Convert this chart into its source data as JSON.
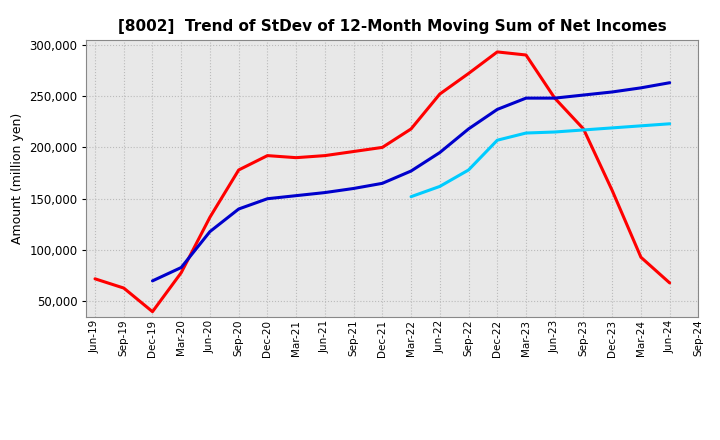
{
  "title": "[8002]  Trend of StDev of 12-Month Moving Sum of Net Incomes",
  "ylabel": "Amount (million yen)",
  "background_color": "#ffffff",
  "plot_bg_color": "#e8e8e8",
  "grid_color": "#bbbbbb",
  "ylim": [
    35000,
    305000
  ],
  "yticks": [
    50000,
    100000,
    150000,
    200000,
    250000,
    300000
  ],
  "x_labels": [
    "Jun-19",
    "Sep-19",
    "Dec-19",
    "Mar-20",
    "Jun-20",
    "Sep-20",
    "Dec-20",
    "Mar-21",
    "Jun-21",
    "Sep-21",
    "Dec-21",
    "Mar-22",
    "Jun-22",
    "Sep-22",
    "Dec-22",
    "Mar-23",
    "Jun-23",
    "Sep-23",
    "Dec-23",
    "Mar-24",
    "Jun-24",
    "Sep-24"
  ],
  "series": {
    "3 Years": {
      "color": "#ff0000",
      "data_x": [
        0,
        1,
        2,
        3,
        4,
        5,
        6,
        7,
        8,
        9,
        10,
        11,
        12,
        13,
        14,
        15,
        16,
        17,
        18,
        19,
        20
      ],
      "data_y": [
        72000,
        63000,
        40000,
        78000,
        132000,
        178000,
        192000,
        190000,
        192000,
        196000,
        200000,
        218000,
        252000,
        272000,
        293000,
        290000,
        248000,
        218000,
        158000,
        93000,
        68000
      ]
    },
    "5 Years": {
      "color": "#0000cc",
      "data_x": [
        2,
        3,
        4,
        5,
        6,
        7,
        8,
        9,
        10,
        11,
        12,
        13,
        14,
        15,
        16,
        17,
        18,
        19,
        20
      ],
      "data_y": [
        70000,
        83000,
        118000,
        140000,
        150000,
        153000,
        156000,
        160000,
        165000,
        177000,
        195000,
        218000,
        237000,
        248000,
        248000,
        251000,
        254000,
        258000,
        263000
      ]
    },
    "7 Years": {
      "color": "#00ccff",
      "data_x": [
        11,
        12,
        13,
        14,
        15,
        16,
        17,
        18,
        19,
        20
      ],
      "data_y": [
        152000,
        162000,
        178000,
        207000,
        214000,
        215000,
        217000,
        219000,
        221000,
        223000
      ]
    },
    "10 Years": {
      "color": "#008000",
      "data_x": [],
      "data_y": []
    }
  }
}
